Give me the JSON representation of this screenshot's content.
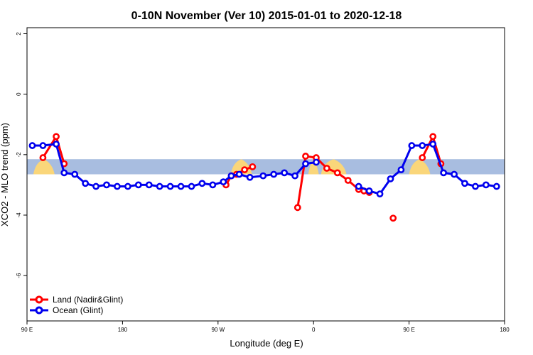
{
  "chart_data": {
    "type": "line",
    "title": "0-10N November (Ver 10)   2015-01-01 to 2020-12-18",
    "xlabel": "Longitude (deg E)",
    "ylabel": "XCO2 - MLO trend (ppm)",
    "xlim": [
      90,
      540
    ],
    "ylim": [
      -7.5,
      2.2
    ],
    "xticks": [
      {
        "value": 90,
        "label": "90 E"
      },
      {
        "value": 180,
        "label": "180"
      },
      {
        "value": 270,
        "label": "90 W"
      },
      {
        "value": 360,
        "label": "0"
      },
      {
        "value": 450,
        "label": "90 E"
      },
      {
        "value": 540,
        "label": "180"
      }
    ],
    "yticks": [
      {
        "value": 2,
        "label": "2"
      },
      {
        "value": 0,
        "label": "0"
      },
      {
        "value": -2,
        "label": "-2"
      },
      {
        "value": -4,
        "label": "-4"
      },
      {
        "value": -6,
        "label": "-6"
      }
    ],
    "band": {
      "ymin": -2.65,
      "ymax": -2.15,
      "color": "#a8bde0",
      "land_color": "#fad67a"
    },
    "legend": {
      "position": "bottom-left"
    },
    "series": [
      {
        "name": "Land (Nadir&Glint)",
        "color": "#ff0000",
        "segments": [
          {
            "x": [
              105,
              117.5,
              125
            ],
            "y": [
              -2.1,
              -1.4,
              -2.3
            ]
          },
          {
            "x": [
              277.5,
              282.5,
              287.5,
              295,
              302.5
            ],
            "y": [
              -3.0,
              -2.7,
              -2.65,
              -2.5,
              -2.4
            ]
          },
          {
            "x": [
              345,
              352.5,
              362.5,
              372.5,
              382.5,
              392.5,
              402.5,
              407.5,
              412.5
            ],
            "y": [
              -3.75,
              -2.05,
              -2.1,
              -2.45,
              -2.6,
              -2.85,
              -3.15,
              -3.2,
              -3.25
            ]
          },
          {
            "x": [
              462.5,
              472.5,
              480
            ],
            "y": [
              -2.1,
              -1.4,
              -2.3
            ]
          }
        ],
        "points": [
          {
            "x": 435,
            "y": -4.1
          }
        ]
      },
      {
        "name": "Ocean (Glint)",
        "color": "#0000ee",
        "segments": [
          {
            "x": [
              95,
              105,
              117.5,
              125,
              135,
              145,
              155,
              165,
              175,
              185,
              195,
              205,
              215,
              225,
              235,
              245,
              255,
              265,
              275,
              282.5,
              290,
              300,
              312.5,
              322.5,
              332.5,
              342.5,
              352.5,
              362.5
            ],
            "y": [
              -1.7,
              -1.7,
              -1.65,
              -2.6,
              -2.65,
              -2.95,
              -3.05,
              -3.0,
              -3.05,
              -3.05,
              -3.0,
              -3.0,
              -3.05,
              -3.05,
              -3.05,
              -3.05,
              -2.95,
              -3.0,
              -2.9,
              -2.7,
              -2.65,
              -2.75,
              -2.7,
              -2.65,
              -2.6,
              -2.7,
              -2.3,
              -2.25
            ]
          },
          {
            "x": [
              402.5,
              412.5,
              422.5,
              432.5,
              442.5,
              452.5,
              462.5,
              472.5,
              482.5,
              492.5,
              502.5,
              512.5,
              522.5,
              532.5
            ],
            "y": [
              -3.05,
              -3.2,
              -3.3,
              -2.8,
              -2.5,
              -1.7,
              -1.7,
              -1.65,
              -2.6,
              -2.65,
              -2.95,
              -3.05,
              -3.0,
              -3.05
            ]
          }
        ],
        "points": []
      }
    ]
  }
}
